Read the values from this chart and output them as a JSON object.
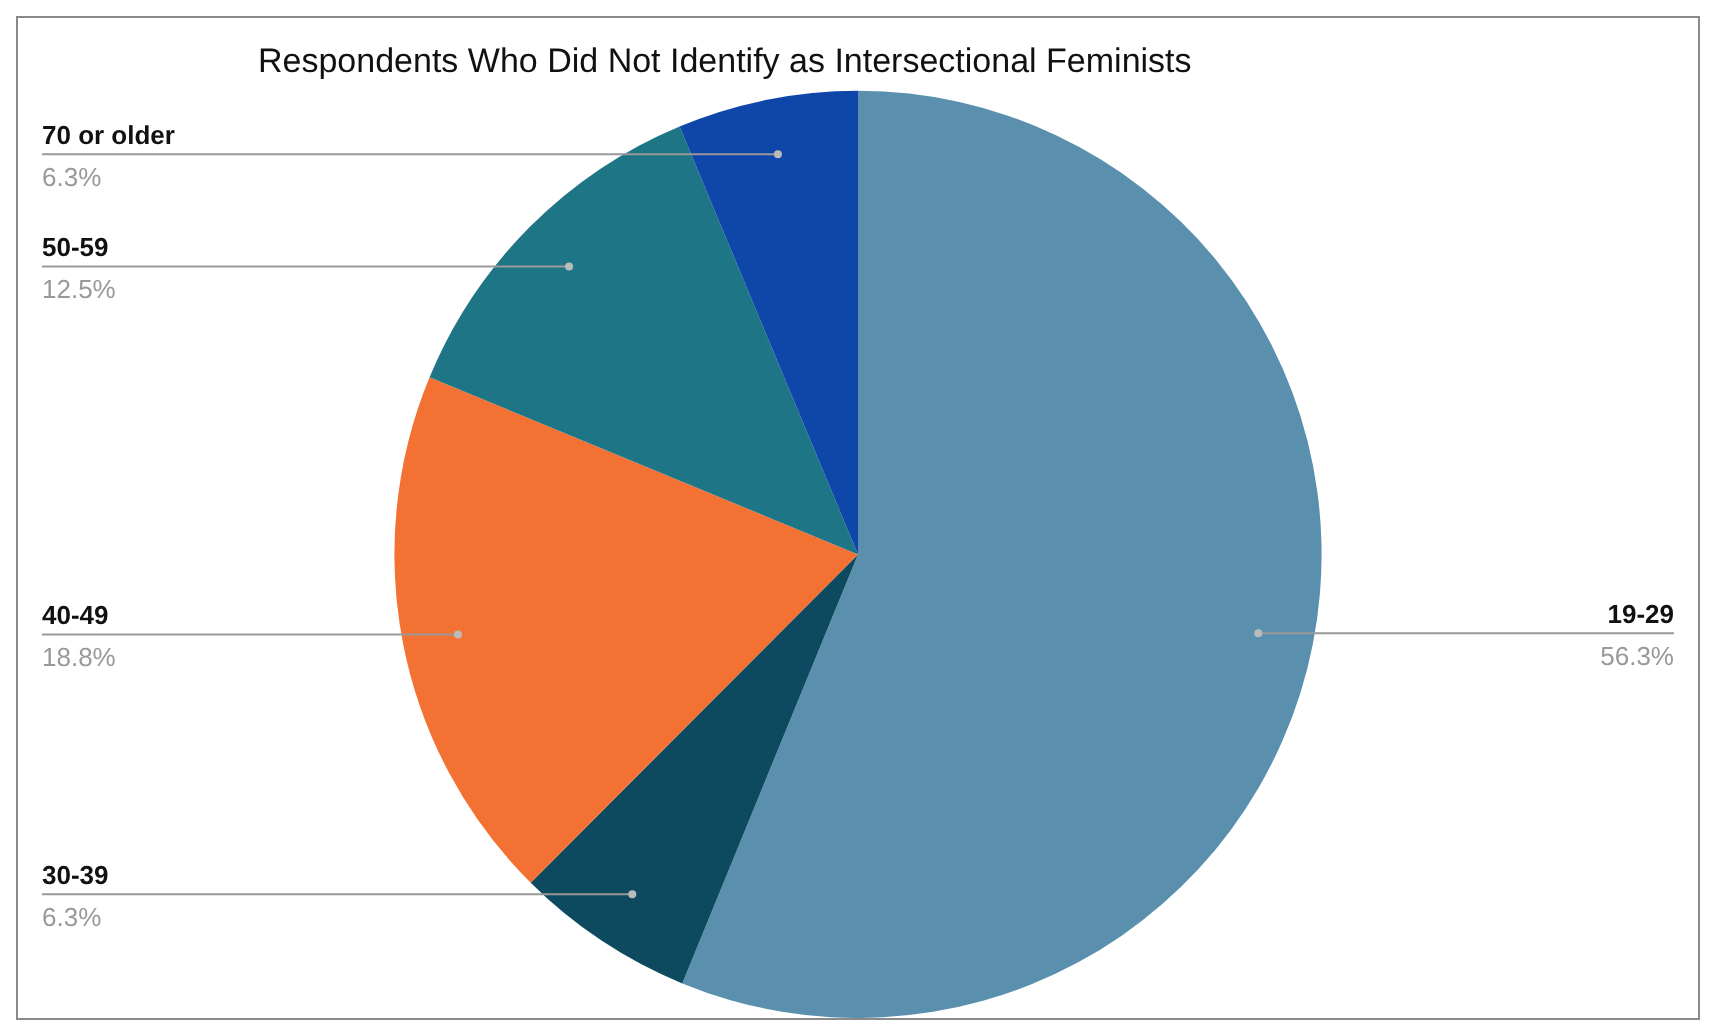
{
  "chart_data": {
    "type": "pie",
    "title": "Respondents Who Did Not Identify as Intersectional Feminists",
    "categories": [
      "19-29",
      "30-39",
      "40-49",
      "50-59",
      "70 or older"
    ],
    "values": [
      56.3,
      6.3,
      18.8,
      12.5,
      6.3
    ],
    "value_labels": [
      "56.3%",
      "6.3%",
      "18.8%",
      "12.5%",
      "6.3%"
    ],
    "colors": [
      "#5a90ae",
      "#0e4a5f",
      "#f47134",
      "#1e7585",
      "#0f46a9"
    ],
    "legend": false
  }
}
